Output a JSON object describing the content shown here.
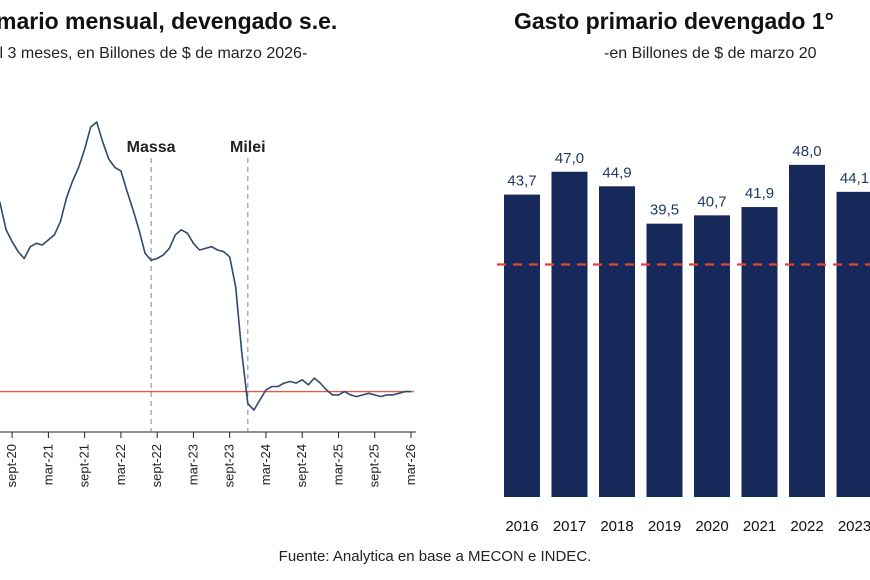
{
  "colors": {
    "line": "#2f4a6e",
    "bar": "#16295a",
    "reference_line": "#e05a4e",
    "dashed_reference": "#e0443c",
    "event_line": "#888888"
  },
  "source": "Fuente: Analytica en base a MECON e INDEC.",
  "chart_data": [
    {
      "type": "line",
      "title": "mario mensual, devengado s.e.",
      "subtitle": "il 3 meses, en Billones de $ de marzo 2026-",
      "x_ticks": [
        "sept-20",
        "mar-21",
        "sept-21",
        "mar-22",
        "sept-22",
        "mar-23",
        "sept-23",
        "mar-24",
        "sept-24",
        "mar-25",
        "sept-25",
        "mar-26"
      ],
      "events": [
        {
          "label": "Massa",
          "x": "ago-22"
        },
        {
          "label": "Milei",
          "x": "dic-23"
        }
      ],
      "reference_value": 28.3,
      "series": [
        {
          "x": [
            "jun-20",
            "jul-20",
            "ago-20",
            "sept-20",
            "oct-20",
            "nov-20",
            "dic-20",
            "ene-21",
            "feb-21",
            "mar-21",
            "abr-21",
            "may-21",
            "jun-21",
            "jul-21",
            "ago-21",
            "sept-21",
            "oct-21",
            "nov-21",
            "dic-21",
            "ene-22",
            "feb-22",
            "mar-22",
            "abr-22",
            "may-22",
            "jun-22",
            "jul-22",
            "ago-22",
            "sept-22",
            "oct-22",
            "nov-22",
            "dic-22",
            "ene-23",
            "feb-23",
            "mar-23",
            "abr-23",
            "may-23",
            "jun-23",
            "jul-23",
            "ago-23",
            "sept-23",
            "oct-23",
            "nov-23",
            "dic-23",
            "ene-24",
            "feb-24",
            "mar-24",
            "abr-24",
            "may-24",
            "jun-24",
            "jul-24",
            "ago-24",
            "sept-24",
            "oct-24",
            "nov-24",
            "dic-24",
            "ene-25",
            "feb-25",
            "mar-25",
            "abr-25",
            "may-25",
            "jun-25",
            "jul-25",
            "ago-25",
            "sept-25",
            "oct-25",
            "nov-25",
            "dic-25",
            "ene-26",
            "feb-26",
            "mar-26"
          ],
          "values": [
            40.4,
            39.5,
            37.9,
            37.2,
            36.6,
            36.2,
            36.9,
            37.1,
            37.0,
            37.3,
            37.6,
            38.4,
            39.8,
            40.8,
            41.6,
            42.7,
            44.0,
            44.3,
            43.1,
            42.1,
            41.6,
            41.4,
            40.2,
            39.1,
            37.9,
            36.5,
            36.1,
            36.2,
            36.4,
            36.8,
            37.6,
            37.9,
            37.7,
            37.1,
            36.7,
            36.8,
            36.9,
            36.7,
            36.6,
            36.3,
            34.5,
            30.6,
            27.6,
            27.2,
            27.8,
            28.4,
            28.6,
            28.6,
            28.8,
            28.9,
            28.8,
            29.0,
            28.7,
            29.1,
            28.8,
            28.4,
            28.1,
            28.1,
            28.3,
            28.1,
            28.0,
            28.1,
            28.2,
            28.1,
            28.0,
            28.1,
            28.1,
            28.2,
            28.3,
            28.3
          ]
        }
      ]
    },
    {
      "type": "bar",
      "title": "Gasto primario devengado 1°",
      "subtitle": "-en Billones de $ de marzo 20",
      "categories": [
        "2016",
        "2017",
        "2018",
        "2019",
        "2020",
        "2021",
        "2022",
        "2023"
      ],
      "values": [
        43.7,
        47.0,
        44.9,
        39.5,
        40.7,
        41.9,
        48.0,
        44.1
      ],
      "value_labels": [
        "43,7",
        "47,0",
        "44,9",
        "39,5",
        "40,7",
        "41,9",
        "48,0",
        "44,1"
      ],
      "reference_value": 33.6,
      "ylim": [
        0,
        50
      ]
    }
  ]
}
